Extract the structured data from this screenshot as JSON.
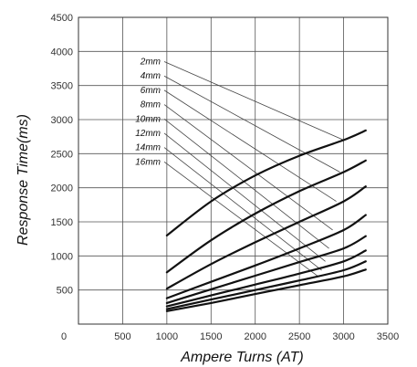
{
  "chart_data": {
    "type": "line",
    "xlabel": "Ampere Turns (AT)",
    "ylabel": "Response Time(ms)",
    "xlim": [
      0,
      3500
    ],
    "ylim": [
      0,
      4500
    ],
    "x_ticks": [
      "0",
      "500",
      "1000",
      "1500",
      "2000",
      "2500",
      "3000",
      "3500"
    ],
    "y_ticks": [
      "500",
      "1000",
      "1500",
      "2000",
      "2500",
      "3000",
      "3500",
      "4000",
      "4500"
    ],
    "grid": true,
    "x": [
      1000,
      1500,
      2000,
      2500,
      3000,
      3250
    ],
    "series": [
      {
        "name": "2mm",
        "values": [
          1300,
          1800,
          2180,
          2470,
          2700,
          2840
        ]
      },
      {
        "name": "4mm",
        "values": [
          760,
          1230,
          1620,
          1950,
          2230,
          2400
        ]
      },
      {
        "name": "6mm",
        "values": [
          520,
          880,
          1200,
          1500,
          1800,
          2020
        ]
      },
      {
        "name": "8mm",
        "values": [
          380,
          620,
          860,
          1110,
          1380,
          1600
        ]
      },
      {
        "name": "10mm",
        "values": [
          310,
          510,
          710,
          910,
          1110,
          1290
        ]
      },
      {
        "name": "12mm",
        "values": [
          260,
          420,
          580,
          740,
          920,
          1080
        ]
      },
      {
        "name": "14mm",
        "values": [
          220,
          360,
          500,
          640,
          790,
          920
        ]
      },
      {
        "name": "16mm",
        "values": [
          190,
          310,
          440,
          570,
          700,
          800
        ]
      }
    ]
  }
}
